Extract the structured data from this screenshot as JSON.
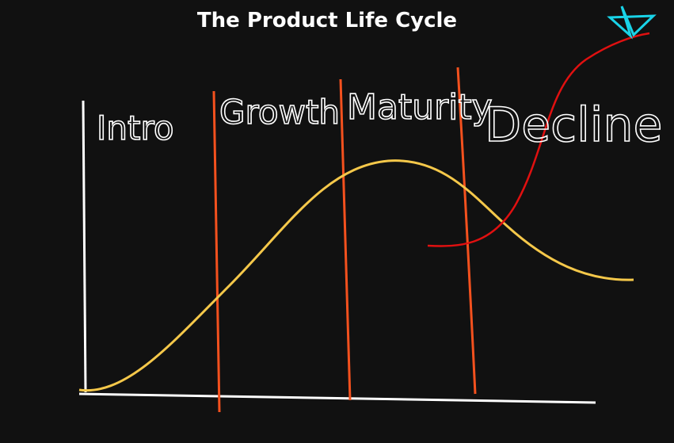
{
  "title": "The Product Life Cycle",
  "stages": [
    {
      "label": "Intro"
    },
    {
      "label": "Growth"
    },
    {
      "label": "Maturity"
    },
    {
      "label": "Decline"
    }
  ]
}
